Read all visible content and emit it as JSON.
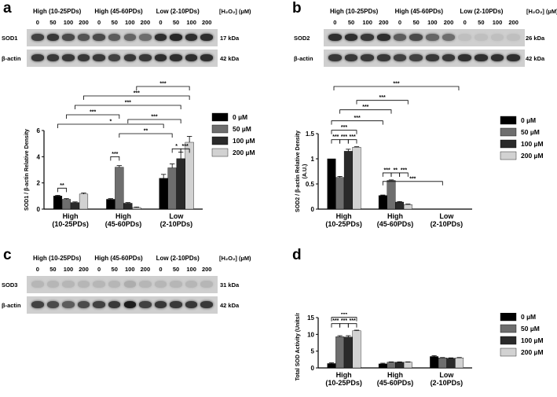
{
  "panels": [
    {
      "letter": "a",
      "groups": [
        "High (10-25PDs)",
        "High (45-60PDs)",
        "Low (2-10PDs)"
      ],
      "conc_header": "[H₂O₂] (µM)",
      "concentrations": [
        "0",
        "50",
        "100",
        "200",
        "0",
        "50",
        "100",
        "200",
        "0",
        "50",
        "100",
        "200"
      ],
      "blots": [
        {
          "label": "SOD1",
          "kda": "17 kDa",
          "intensity": [
            0.75,
            0.8,
            0.7,
            0.65,
            0.7,
            0.6,
            0.55,
            0.5,
            0.85,
            0.9,
            0.85,
            0.85
          ]
        },
        {
          "label": "β-actin",
          "kda": "42 kDa",
          "intensity": [
            0.8,
            0.8,
            0.8,
            0.8,
            0.8,
            0.75,
            0.8,
            0.8,
            0.85,
            0.85,
            0.85,
            0.85
          ]
        }
      ]
    },
    {
      "letter": "b",
      "groups": [
        "High (10-25PDs)",
        "High (45-60PDs)",
        "Low (2-10PDs)"
      ],
      "conc_header": "[H₂O₂] (µM)",
      "concentrations": [
        "0",
        "50",
        "100",
        "200",
        "0",
        "50",
        "100",
        "200",
        "0",
        "50",
        "100",
        "200"
      ],
      "blots": [
        {
          "label": "SOD2",
          "kda": "26 kDa",
          "intensity": [
            0.85,
            0.85,
            0.8,
            0.85,
            0.6,
            0.7,
            0.55,
            0.5,
            0.05,
            0.05,
            0.05,
            0.05
          ]
        },
        {
          "label": "β-actin",
          "kda": "42 kDa",
          "intensity": [
            0.8,
            0.8,
            0.8,
            0.8,
            0.75,
            0.75,
            0.8,
            0.8,
            0.85,
            0.85,
            0.85,
            0.85
          ]
        }
      ]
    },
    {
      "letter": "c",
      "groups": [
        "High (10-25PDs)",
        "High (45-60PDs)",
        "Low (2-10PDs)"
      ],
      "conc_header": "[H₂O₂] (µM)",
      "concentrations": [
        "0",
        "50",
        "100",
        "200",
        "0",
        "50",
        "100",
        "200",
        "0",
        "50",
        "100",
        "200"
      ],
      "blots": [
        {
          "label": "SOD3",
          "kda": "31 kDa",
          "intensity": [
            0.1,
            0.1,
            0.1,
            0.1,
            0.1,
            0.1,
            0.15,
            0.1,
            0.1,
            0.1,
            0.1,
            0.1
          ]
        },
        {
          "label": "β-actin",
          "kda": "42 kDa",
          "intensity": [
            0.75,
            0.7,
            0.6,
            0.7,
            0.75,
            0.8,
            0.95,
            0.75,
            0.8,
            0.8,
            0.8,
            0.8
          ]
        }
      ]
    },
    {
      "letter": "d"
    }
  ],
  "chart_data": [
    {
      "type": "bar",
      "panel": "a",
      "categories": [
        "High\n(10-25PDs)",
        "High\n(45-60PDs)",
        "Low\n(2-10PDs)"
      ],
      "ylabel": "SOD1 / β-actin Relative Density",
      "ylim": [
        0,
        6
      ],
      "yticks": [
        0,
        2,
        4,
        6
      ],
      "legend": "right",
      "series": [
        {
          "name": "0 µM",
          "color": "#000000",
          "values": [
            1.0,
            0.75,
            2.35
          ],
          "errors": [
            0.05,
            0.05,
            0.3
          ]
        },
        {
          "name": "50 µM",
          "color": "#6e6e6e",
          "values": [
            0.75,
            3.2,
            3.15
          ],
          "errors": [
            0.05,
            0.12,
            0.3
          ]
        },
        {
          "name": "100 µM",
          "color": "#2a2a2a",
          "values": [
            0.5,
            0.45,
            3.85
          ],
          "errors": [
            0.05,
            0.05,
            0.5
          ]
        },
        {
          "name": "200 µM",
          "color": "#d2d2d2",
          "values": [
            1.15,
            0.12,
            5.1
          ],
          "errors": [
            0.08,
            0.04,
            0.45
          ]
        }
      ],
      "annotations": [
        "**",
        "***",
        "*",
        "***",
        "**",
        "***",
        "***",
        "***",
        "***",
        "*",
        "***"
      ]
    },
    {
      "type": "bar",
      "panel": "b",
      "categories": [
        "High\n(10-25PDs)",
        "High\n(45-60PDs)",
        "Low\n(2-10PDs)"
      ],
      "ylabel": "SOD2 / β-actin Relative Density\n(A.U.)",
      "ylim": [
        0,
        1.5
      ],
      "yticks": [
        0.0,
        0.5,
        1.0,
        1.5
      ],
      "legend": "right",
      "series": [
        {
          "name": "0 µM",
          "color": "#000000",
          "values": [
            1.0,
            0.27,
            0.0
          ],
          "errors": [
            0.0,
            0.01,
            0.0
          ]
        },
        {
          "name": "50 µM",
          "color": "#6e6e6e",
          "values": [
            0.63,
            0.57,
            0.0
          ],
          "errors": [
            0.02,
            0.01,
            0.0
          ]
        },
        {
          "name": "100 µM",
          "color": "#2a2a2a",
          "values": [
            1.15,
            0.14,
            0.0
          ],
          "errors": [
            0.04,
            0.01,
            0.0
          ]
        },
        {
          "name": "200 µM",
          "color": "#d2d2d2",
          "values": [
            1.23,
            0.09,
            0.0
          ],
          "errors": [
            0.01,
            0.01,
            0.0
          ]
        }
      ],
      "annotations": [
        "***",
        "***",
        "***",
        "***",
        "***",
        "**",
        "***",
        "***",
        "***",
        "***",
        "***",
        "***"
      ]
    },
    {
      "type": "bar",
      "panel": "d",
      "categories": [
        "High\n(10-25PDs)",
        "High\n(45-60PDs)",
        "Low\n(2-10PDs)"
      ],
      "ylabel": "Total SOD Activity (Units/mL)",
      "ylim": [
        0,
        15
      ],
      "yticks": [
        0,
        5,
        10,
        15
      ],
      "legend": "right",
      "series": [
        {
          "name": "0 µM",
          "color": "#000000",
          "values": [
            1.3,
            1.2,
            3.4
          ],
          "errors": [
            0.2,
            0.2,
            0.25
          ]
        },
        {
          "name": "50 µM",
          "color": "#6e6e6e",
          "values": [
            9.3,
            1.7,
            3.0
          ],
          "errors": [
            0.3,
            0.1,
            0.1
          ]
        },
        {
          "name": "100 µM",
          "color": "#2a2a2a",
          "values": [
            9.2,
            1.7,
            2.9
          ],
          "errors": [
            0.4,
            0.1,
            0.1
          ]
        },
        {
          "name": "200 µM",
          "color": "#d2d2d2",
          "values": [
            11.1,
            1.7,
            3.0
          ],
          "errors": [
            0.15,
            0.1,
            0.1
          ]
        }
      ],
      "annotations": [
        "***",
        "***",
        "***",
        "***",
        "***",
        "***",
        "***",
        "***",
        "***",
        "***",
        "***"
      ]
    }
  ]
}
